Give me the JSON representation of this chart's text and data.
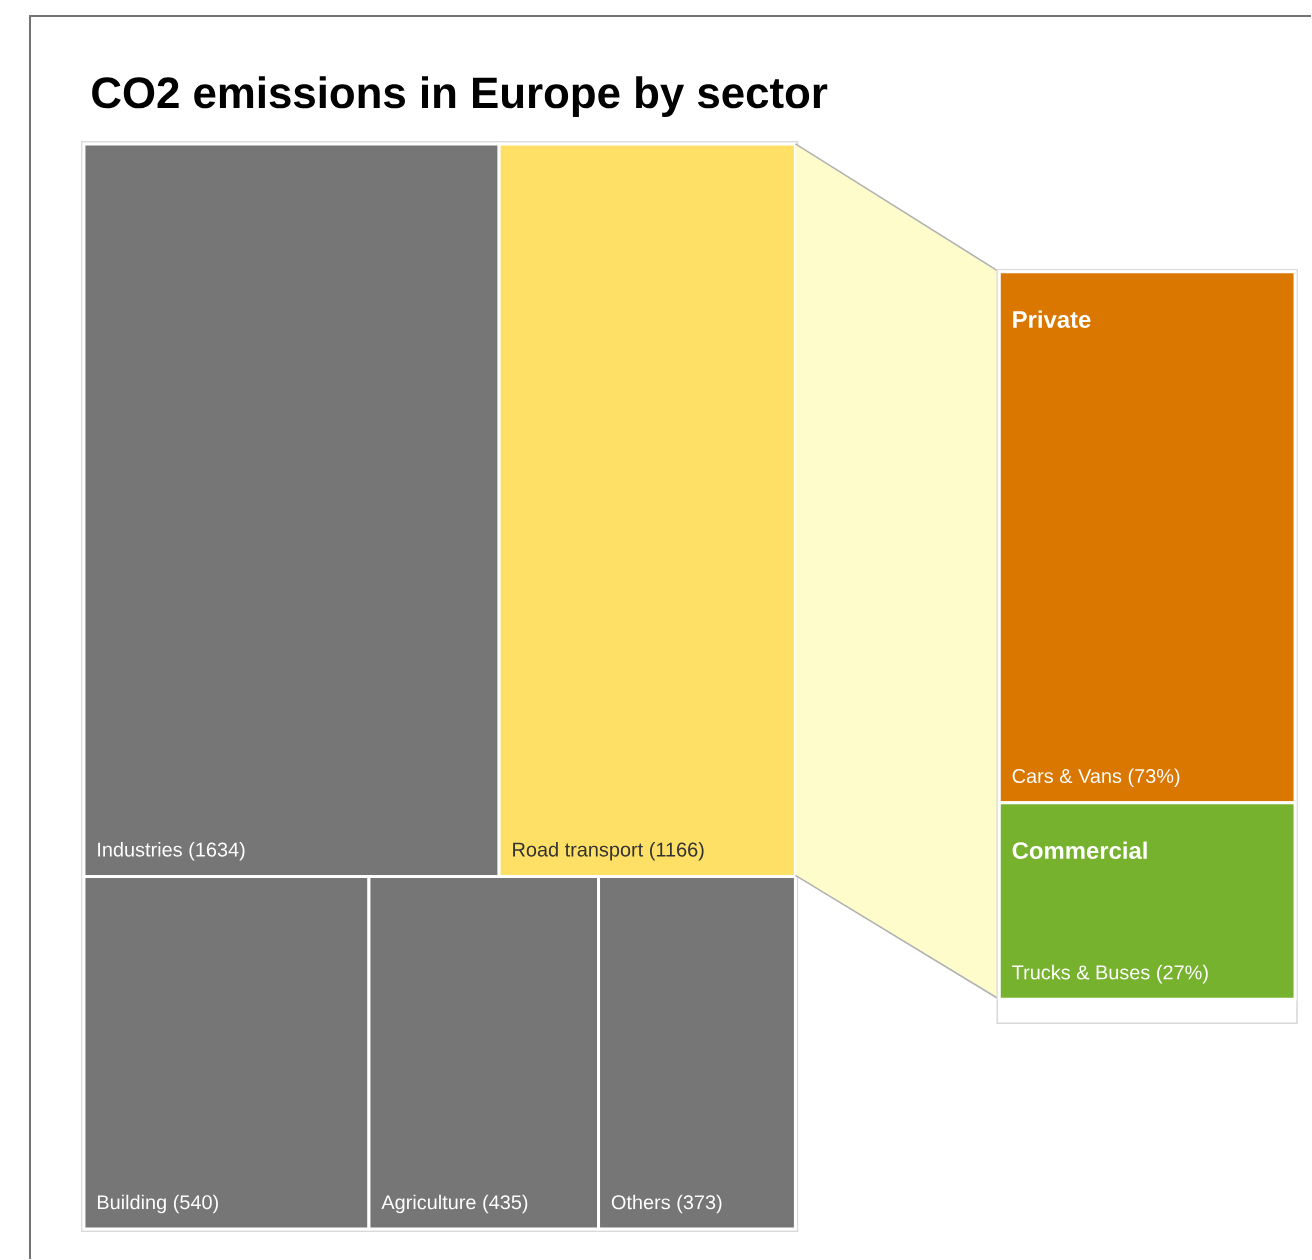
{
  "chart_data": [
    {
      "type": "other",
      "title": "CO2 emissions in Europe by sector",
      "categories": [
        "Industries",
        "Road transport",
        "Building",
        "Agriculture",
        "Others"
      ],
      "values": [
        1634,
        1166,
        540,
        435,
        373
      ],
      "value_labels": [
        "(1634)",
        "(1166)",
        "(540)",
        "(435)",
        "(373)"
      ],
      "colors": [
        "#767676",
        "#ffe066",
        "#767676",
        "#767676",
        "#767676"
      ]
    },
    {
      "type": "other",
      "categories": [
        "Cars & Vans",
        "Trucks & Buses"
      ],
      "values": [
        73,
        27
      ],
      "value_labels": [
        "(73%)",
        "(27%)"
      ],
      "colors": [
        "#d97700",
        "#77b22f"
      ],
      "annotations": [
        "Private",
        "Commercial"
      ]
    }
  ]
}
